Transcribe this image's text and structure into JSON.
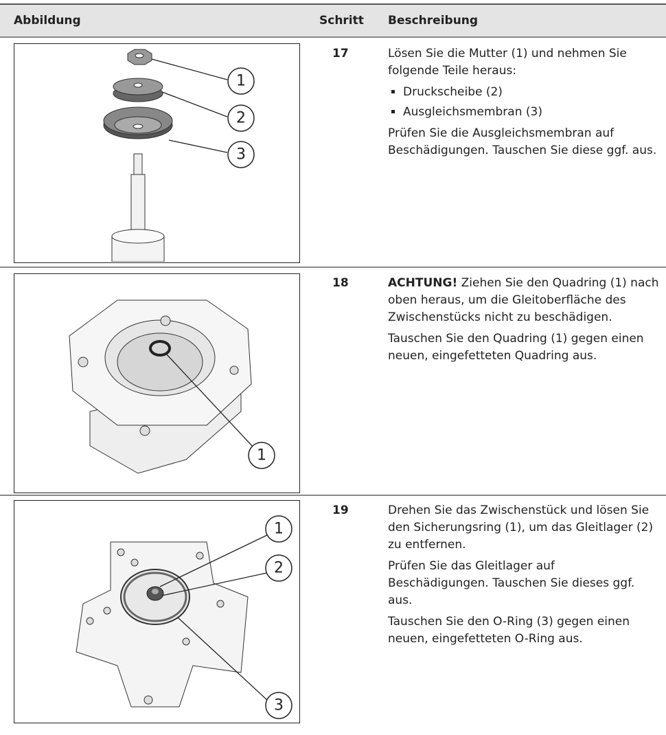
{
  "header": {
    "figure": "Abbildung",
    "step": "Schritt",
    "description": "Beschreibung"
  },
  "rows": [
    {
      "step": "17",
      "callouts": [
        "1",
        "2",
        "3"
      ],
      "paragraphs": [
        {
          "text": "Lösen Sie die Mutter (1) und nehmen Sie folgende Teile heraus:"
        },
        {
          "bullets": [
            "Druckscheibe (2)",
            "Ausgleichsmembran (3)"
          ]
        },
        {
          "text": "Prüfen Sie die Ausgleichsmembran auf Beschädigungen. Tauschen Sie diese ggf. aus."
        }
      ]
    },
    {
      "step": "18",
      "callouts": [
        "1"
      ],
      "paragraphs": [
        {
          "strong": "ACHTUNG!",
          "text": "Ziehen Sie den Quadring (1) nach oben heraus, um die Gleitoberfläche des Zwischenstücks nicht zu beschädigen."
        },
        {
          "text": "Tauschen Sie den Quadring (1) gegen einen neuen, eingefetteten Quadring aus."
        }
      ]
    },
    {
      "step": "19",
      "callouts": [
        "1",
        "2",
        "3"
      ],
      "paragraphs": [
        {
          "text": "Drehen Sie das Zwischenstück und lösen Sie den Sicherungsring (1), um das Gleitlager (2) zu entfernen."
        },
        {
          "text": "Prüfen Sie das Gleitlager auf Beschädigungen. Tauschen Sie dieses ggf. aus."
        },
        {
          "text": "Tauschen Sie den O-Ring (3) gegen einen neuen, eingefetteten O-Ring aus."
        }
      ]
    }
  ]
}
